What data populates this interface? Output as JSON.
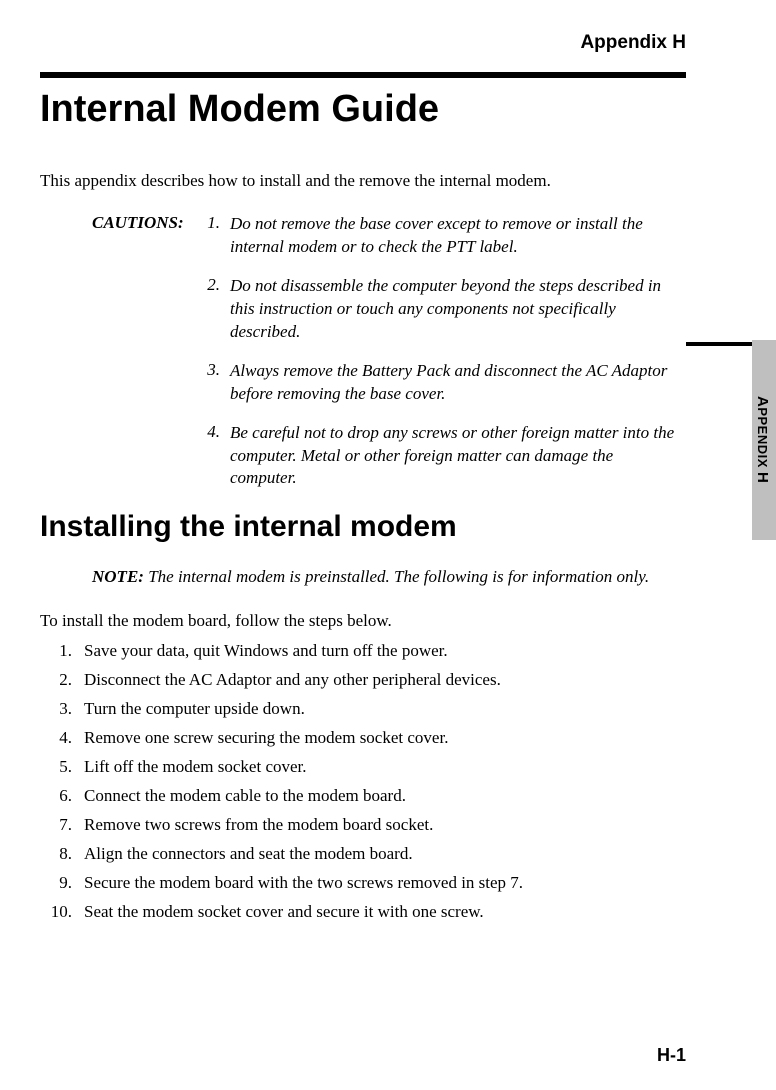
{
  "header": {
    "appendix_label": "Appendix H"
  },
  "title": "Internal Modem Guide",
  "intro": "This appendix describes how to install and the remove the internal modem.",
  "cautions_label": "CAUTIONS:",
  "cautions": [
    {
      "num": "1.",
      "text": "Do not remove the base cover except to remove or install the internal modem or to check the PTT label."
    },
    {
      "num": "2.",
      "text": "Do not disassemble the computer beyond the steps described in this instruction or touch any components not specifically described."
    },
    {
      "num": "3.",
      "text": "Always remove the Battery Pack and disconnect the AC Adaptor before removing the base cover."
    },
    {
      "num": "4.",
      "text": "Be careful not to drop any screws or other foreign matter into the computer. Metal or other foreign matter can damage the computer."
    }
  ],
  "section_title": "Installing the internal modem",
  "note": {
    "label": "NOTE:",
    "text": " The internal modem is preinstalled. The following is for informa­tion only."
  },
  "steps_intro": "To install the modem board, follow the steps below.",
  "steps": [
    {
      "num": "1.",
      "text": "Save your data, quit Windows and turn off the power."
    },
    {
      "num": "2.",
      "text": "Disconnect the AC Adaptor and any other peripheral devices."
    },
    {
      "num": "3.",
      "text": "Turn the computer upside down."
    },
    {
      "num": "4.",
      "text": "Remove one screw securing the modem socket cover."
    },
    {
      "num": "5.",
      "text": "Lift off the modem socket cover."
    },
    {
      "num": "6.",
      "text": "Connect the modem cable to the modem board."
    },
    {
      "num": "7.",
      "text": "Remove two screws from the modem board socket."
    },
    {
      "num": "8.",
      "text": "Align the connectors and seat the modem board."
    },
    {
      "num": "9.",
      "text": "Secure the modem board with the two screws removed in step 7."
    },
    {
      "num": "10.",
      "text": "Seat the modem socket cover and secure it with one screw."
    }
  ],
  "side_tab": "APPENDIX H",
  "page_number": "H-1",
  "colors": {
    "text": "#000000",
    "background": "#ffffff",
    "tab_bg": "#bfbfbf",
    "rule": "#000000"
  },
  "typography": {
    "body_font": "Times New Roman",
    "heading_font": "Arial",
    "title_size_pt": 28,
    "section_size_pt": 22,
    "body_size_pt": 12
  }
}
